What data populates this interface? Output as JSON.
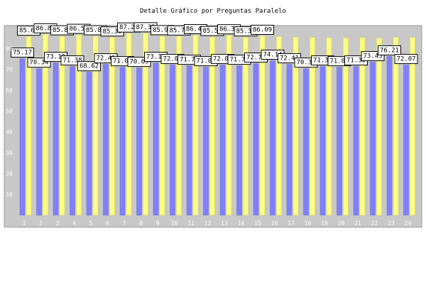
{
  "chart_data": {
    "type": "bar",
    "title": "Detalle Gráfico por Preguntas Paralelo",
    "xlabel": "",
    "ylabel": "",
    "categories": [
      "1",
      "2",
      "3",
      "4",
      "5",
      "6",
      "7",
      "8",
      "9",
      "10",
      "11",
      "12",
      "13",
      "14",
      "15",
      "16",
      "17",
      "18",
      "19",
      "20",
      "21",
      "22",
      "23",
      "24"
    ],
    "series": [
      {
        "values": [
          75.17,
          70.34,
          73.1,
          71.38,
          68.62,
          72.41,
          71.03,
          70.69,
          73.1,
          72.07,
          71.72,
          71.03,
          72.07,
          71.72,
          72.76,
          74.14,
          72.41,
          70.34,
          71.38,
          71.03,
          71.38,
          73.45,
          76.21,
          72.07
        ]
      },
      {
        "values": [
          85.69,
          86.8,
          85.86,
          86.56,
          85.88,
          85.3,
          87.21,
          87.32,
          85.92,
          85.78,
          86.43,
          85.52,
          86.35,
          85.35,
          86.09,
          85.7,
          85.4,
          85.3,
          85.1,
          85.0,
          85.2,
          85.0,
          85.4,
          85.3
        ]
      }
    ],
    "data_labels": {
      "series_0": [
        "75.17",
        "70.34",
        "73.10",
        "71.38",
        "68.62",
        "72.41",
        "71.03",
        "70.69",
        "73.10",
        "72.07",
        "71.72",
        "71.03",
        "72.07",
        "71.72",
        "72.76",
        "74.14",
        "72.41",
        "70.34",
        "71.38",
        "71.03",
        "71.38",
        "73.45",
        "76.21",
        "72.07"
      ],
      "series_1": [
        "85.69",
        "86.80",
        "85.86",
        "86.56",
        "85.88",
        "85.30",
        "87.21",
        "87.32",
        "85.92",
        "85.78",
        "86.43",
        "85.52",
        "86.35",
        "85.35",
        "86.09",
        "",
        "",
        "",
        "",
        "",
        "",
        "",
        "",
        ""
      ]
    },
    "y_ticks": [
      10,
      20,
      30,
      40,
      50,
      60,
      70,
      80
    ],
    "ylim": [
      0,
      90
    ],
    "grid": false,
    "legend": "none"
  },
  "colors": {
    "background": "#ffffff",
    "plot_area": "#c8c8c8",
    "series_0": "#8080ff",
    "series_1": "#ffff80",
    "label_box": "#ffffff",
    "label_text": "#000000",
    "tick_text": "#ffffff"
  }
}
